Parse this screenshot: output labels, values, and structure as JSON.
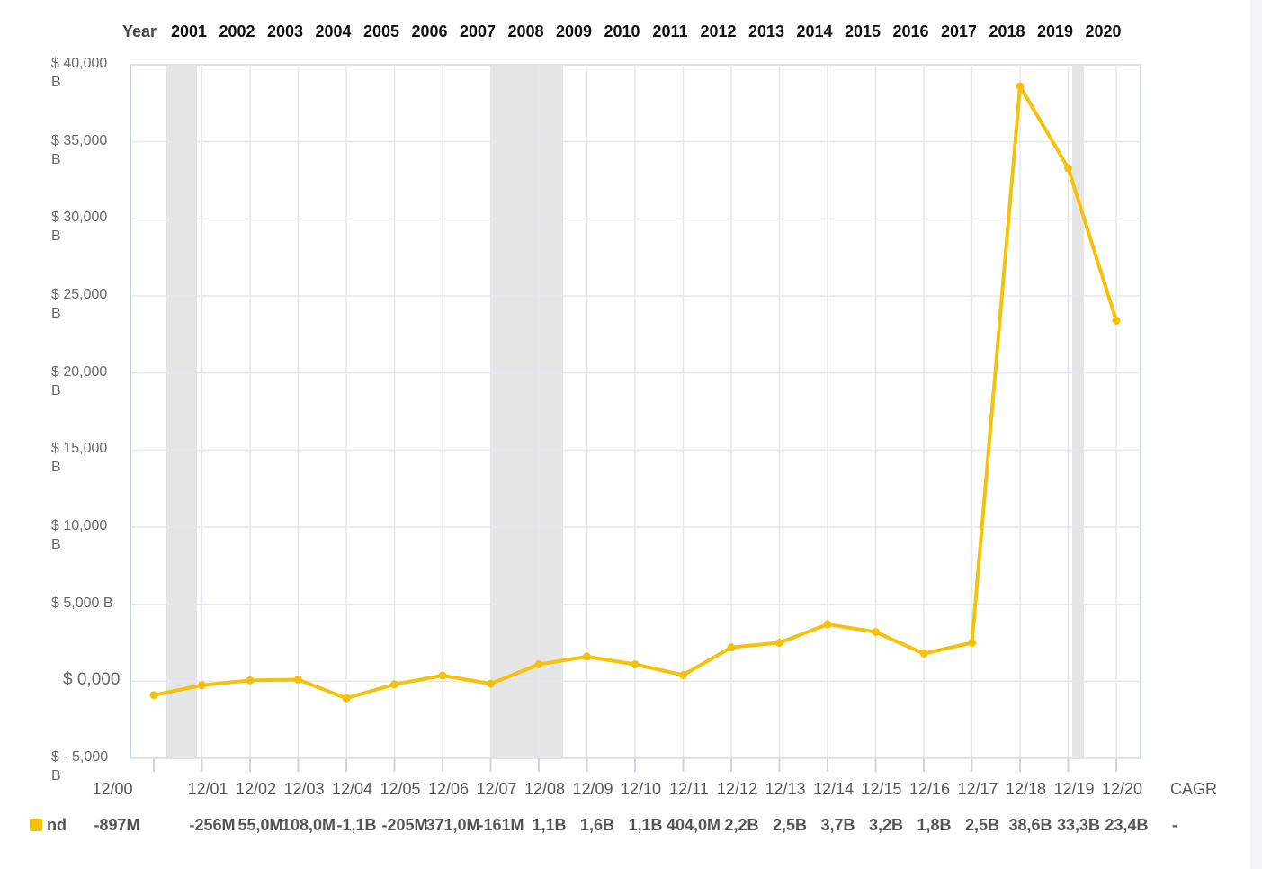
{
  "chart_data": {
    "type": "line",
    "header_label": "Year",
    "years": [
      "2001",
      "2002",
      "2003",
      "2004",
      "2005",
      "2006",
      "2007",
      "2008",
      "2009",
      "2010",
      "2011",
      "2012",
      "2013",
      "2014",
      "2015",
      "2016",
      "2017",
      "2018",
      "2019",
      "2020"
    ],
    "categories": [
      "12/00",
      "12/01",
      "12/02",
      "12/03",
      "12/04",
      "12/05",
      "12/06",
      "12/07",
      "12/08",
      "12/09",
      "12/10",
      "12/11",
      "12/12",
      "12/13",
      "12/14",
      "12/15",
      "12/16",
      "12/17",
      "12/18",
      "12/19",
      "12/20"
    ],
    "series": [
      {
        "name": "nd",
        "color": "#f7c10a",
        "values": [
          -0.897,
          -0.256,
          0.055,
          0.108,
          -1.1,
          -0.205,
          0.371,
          -0.161,
          1.1,
          1.6,
          1.1,
          0.404,
          2.2,
          2.5,
          3.7,
          3.2,
          1.8,
          2.5,
          38.6,
          33.3,
          23.4
        ],
        "value_labels": [
          "-897M",
          "-256M",
          "55,0M",
          "108,0M",
          "-1,1B",
          "-205M",
          "371,0M",
          "-161M",
          "1,1B",
          "1,6B",
          "1,1B",
          "404,0M",
          "2,2B",
          "2,5B",
          "3,7B",
          "3,2B",
          "1,8B",
          "2,5B",
          "38,6B",
          "33,3B",
          "23,4B"
        ]
      }
    ],
    "ylim": [
      -5,
      40
    ],
    "yticks": [
      {
        "value": -5,
        "label": "$ - 5,000 B"
      },
      {
        "value": 0,
        "label": "$ 0,000"
      },
      {
        "value": 5,
        "label": "$ 5,000 B"
      },
      {
        "value": 10,
        "label": "$ 10,000 B"
      },
      {
        "value": 15,
        "label": "$ 15,000 B"
      },
      {
        "value": 20,
        "label": "$ 20,000 B"
      },
      {
        "value": 25,
        "label": "$ 25,000 B"
      },
      {
        "value": 30,
        "label": "$ 30,000 B"
      },
      {
        "value": 35,
        "label": "$ 35,000 B"
      },
      {
        "value": 40,
        "label": "$ 40,000 B"
      }
    ],
    "grid": true,
    "summary_label": "CAGR",
    "summary_value": "-"
  }
}
